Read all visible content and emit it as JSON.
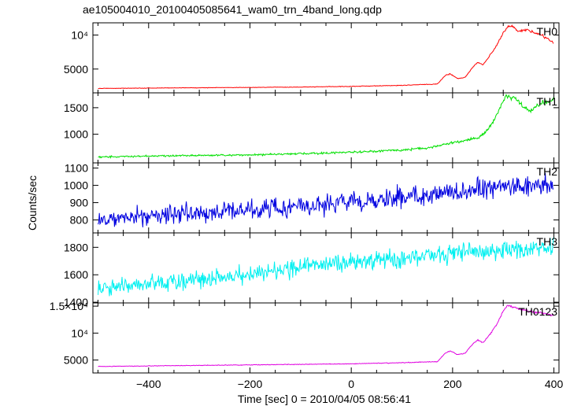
{
  "title": "ae105004010_20100405085641_wam0_trn_4band_long.qdp",
  "ylabel": "Counts/sec",
  "xlabel": "Time [sec] 0 = 2010/04/05 08:56:41",
  "x_ticks": [
    "−400",
    "−200",
    "0",
    "200",
    "400"
  ],
  "chart_data": [
    {
      "type": "line",
      "name": "TH0",
      "color": "#ff0000",
      "xlim": [
        -510,
        410
      ],
      "ylim": [
        1500,
        11800
      ],
      "y_ticks": [
        {
          "value": 5000,
          "label": "5000"
        },
        {
          "value": 10000,
          "label": "10⁴"
        }
      ],
      "x": [
        -500,
        -400,
        -300,
        -200,
        -100,
        0,
        100,
        170,
        185,
        195,
        210,
        225,
        240,
        250,
        260,
        270,
        285,
        300,
        310,
        320,
        330,
        345,
        360,
        375,
        390,
        400
      ],
      "y": [
        2150,
        2200,
        2250,
        2300,
        2350,
        2450,
        2600,
        2800,
        4000,
        4300,
        3600,
        3800,
        5300,
        6000,
        5600,
        6600,
        8200,
        10300,
        11300,
        11200,
        10500,
        10800,
        10400,
        10000,
        9300,
        8800
      ],
      "noise": 0.012
    },
    {
      "type": "line",
      "name": "TH1",
      "color": "#00e000",
      "xlim": [
        -510,
        410
      ],
      "ylim": [
        460,
        1780
      ],
      "y_ticks": [
        {
          "value": 1000,
          "label": "1000"
        },
        {
          "value": 1500,
          "label": "1500"
        }
      ],
      "x": [
        -500,
        -400,
        -300,
        -200,
        -100,
        0,
        100,
        150,
        200,
        250,
        270,
        290,
        305,
        320,
        340,
        355,
        370,
        385,
        400
      ],
      "y": [
        570,
        590,
        600,
        610,
        630,
        660,
        700,
        740,
        840,
        930,
        1080,
        1420,
        1720,
        1700,
        1510,
        1450,
        1570,
        1600,
        1660
      ],
      "noise": 0.02
    },
    {
      "type": "line",
      "name": "TH2",
      "color": "#0000e0",
      "xlim": [
        -510,
        410
      ],
      "ylim": [
        725,
        1130
      ],
      "y_ticks": [
        {
          "value": 800,
          "label": "800"
        },
        {
          "value": 900,
          "label": "900"
        },
        {
          "value": 1000,
          "label": "1000"
        },
        {
          "value": 1100,
          "label": "1100"
        }
      ],
      "x": [
        -500,
        -400,
        -300,
        -200,
        -100,
        0,
        100,
        200,
        300,
        400
      ],
      "y": [
        800,
        820,
        840,
        860,
        880,
        900,
        930,
        960,
        990,
        1000
      ],
      "noise": 0.045
    },
    {
      "type": "line",
      "name": "TH3",
      "color": "#00f0f0",
      "xlim": [
        -510,
        410
      ],
      "ylim": [
        1395,
        1905
      ],
      "y_ticks": [
        {
          "value": 1400,
          "label": "1400"
        },
        {
          "value": 1600,
          "label": "1600"
        },
        {
          "value": 1800,
          "label": "1800"
        }
      ],
      "x": [
        -500,
        -400,
        -300,
        -200,
        -100,
        0,
        100,
        200,
        300,
        400
      ],
      "y": [
        1490,
        1530,
        1570,
        1610,
        1650,
        1690,
        1720,
        1760,
        1780,
        1790
      ],
      "noise": 0.028
    },
    {
      "type": "line",
      "name": "TH0123",
      "color": "#e000e0",
      "xlim": [
        -510,
        410
      ],
      "ylim": [
        2600,
        15600
      ],
      "y_ticks": [
        {
          "value": 5000,
          "label": "5000"
        },
        {
          "value": 10000,
          "label": "10⁴"
        },
        {
          "value": 15000,
          "label": "1.5×10⁴"
        }
      ],
      "x": [
        -500,
        -400,
        -300,
        -200,
        -100,
        0,
        100,
        170,
        185,
        195,
        210,
        225,
        240,
        250,
        260,
        270,
        285,
        300,
        310,
        320,
        340,
        360,
        380,
        400
      ],
      "y": [
        3800,
        3900,
        4000,
        4100,
        4200,
        4300,
        4500,
        4700,
        6200,
        6700,
        6000,
        6300,
        8000,
        8700,
        8200,
        9300,
        11300,
        14100,
        15200,
        14800,
        14300,
        13900,
        13700,
        13200
      ],
      "noise": 0.01
    }
  ]
}
